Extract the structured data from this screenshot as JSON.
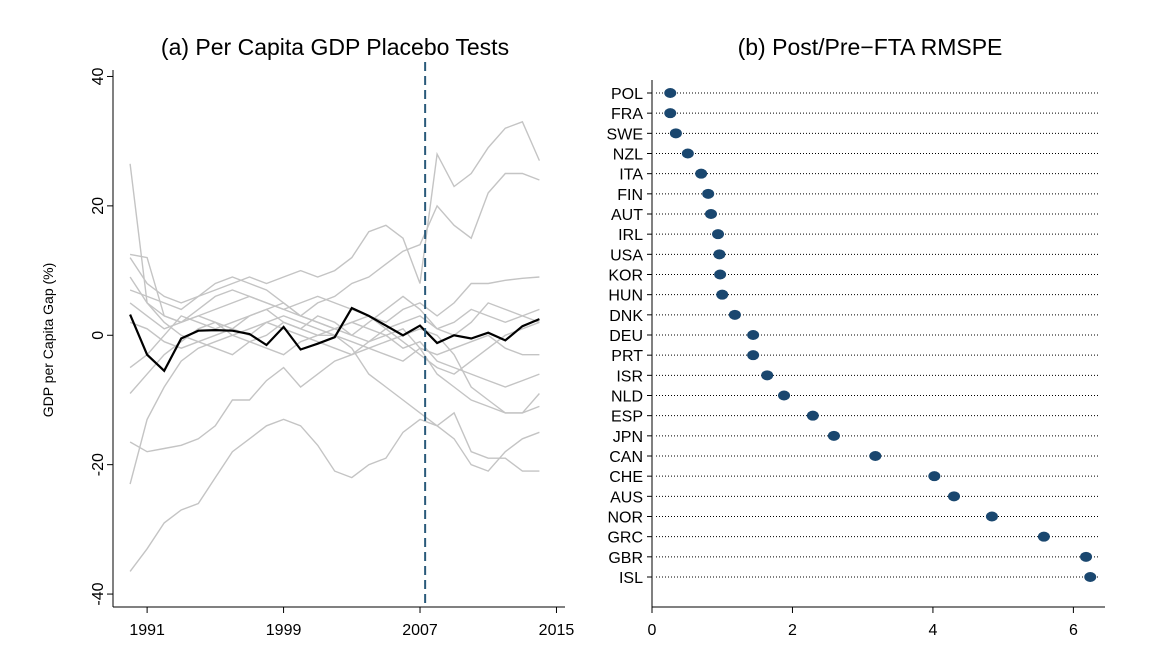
{
  "chart_data": [
    {
      "type": "line",
      "title": "(a) Per Capita GDP Placebo Tests",
      "ylabel": "GDP per Capita Gap (%)",
      "x": [
        1990,
        1991,
        1992,
        1993,
        1994,
        1995,
        1996,
        1997,
        1998,
        1999,
        2000,
        2001,
        2002,
        2003,
        2004,
        2005,
        2006,
        2007,
        2008,
        2009,
        2010,
        2011,
        2012,
        2013,
        2014
      ],
      "xlim": [
        1989,
        2015.5
      ],
      "xticks": [
        1991,
        1999,
        2007,
        2015
      ],
      "ylim": [
        -42,
        41
      ],
      "yticks": [
        -40,
        -20,
        0,
        20,
        40
      ],
      "vline": 2007.3,
      "vline_color": "#2a5a7a",
      "series": [
        {
          "color": "#c4c4c4",
          "values": [
            12,
            8,
            6,
            5,
            6,
            7,
            8,
            9,
            8,
            9,
            10,
            9,
            10,
            12,
            16,
            17,
            15,
            8,
            28,
            23,
            25,
            29,
            32,
            33,
            27
          ]
        },
        {
          "color": "#c4c4c4",
          "values": [
            26.5,
            5,
            3,
            2,
            4,
            6,
            7,
            6,
            5,
            4,
            3,
            5,
            6,
            8,
            9,
            11,
            13,
            14,
            20,
            17,
            15,
            22,
            25,
            25,
            24
          ]
        },
        {
          "color": "#c4c4c4",
          "values": [
            -36.5,
            -33,
            -29,
            -27,
            -26,
            -22,
            -18,
            -16,
            -14,
            -13,
            -14,
            -17,
            -21,
            -22,
            -20,
            -19,
            -15,
            -13,
            -14,
            -16,
            -20,
            -21,
            -18,
            -16,
            -15
          ]
        },
        {
          "color": "#c4c4c4",
          "values": [
            -23,
            -13,
            -8,
            -4,
            -2,
            -1,
            0,
            1,
            2,
            3,
            2,
            1,
            0,
            -2,
            -6,
            -8,
            -10,
            -12,
            -14,
            -12,
            -18,
            -19,
            -19,
            -21,
            -21
          ]
        },
        {
          "color": "#c4c4c4",
          "values": [
            -16.5,
            -18,
            -17.5,
            -17,
            -16,
            -14,
            -10,
            -10,
            -7,
            -5,
            -8,
            -6,
            -4,
            -3,
            -2,
            -1,
            0,
            1,
            0,
            -3,
            -8,
            -10,
            -12,
            -12,
            -9
          ]
        },
        {
          "color": "#c4c4c4",
          "values": [
            12.5,
            12,
            3,
            2,
            3,
            4,
            5,
            6,
            5,
            4,
            5,
            6,
            5,
            4,
            3,
            2,
            4,
            5,
            3,
            5,
            8,
            8,
            8.5,
            8.8,
            9
          ]
        },
        {
          "color": "#c4c4c4",
          "values": [
            9,
            5,
            2,
            0,
            -1,
            -2,
            -3,
            -1,
            0,
            2,
            1,
            0,
            0,
            -1,
            -2,
            -3,
            -4,
            -2,
            -6,
            -8,
            -10,
            -11,
            -12,
            -12,
            -11
          ]
        },
        {
          "color": "#c4c4c4",
          "values": [
            -9,
            -6,
            -3,
            -1,
            1,
            2,
            1,
            3,
            4,
            2,
            1,
            3,
            2,
            0,
            -1,
            1,
            2,
            3,
            1,
            2,
            4,
            3,
            2,
            3,
            4
          ]
        },
        {
          "color": "#c4c4c4",
          "values": [
            5,
            3,
            1,
            2,
            3,
            2,
            0,
            -1,
            -2,
            -3,
            -1,
            0,
            1,
            2,
            1,
            0,
            -2,
            -1,
            -4,
            -5,
            -6,
            -7,
            -8,
            -7,
            -6
          ]
        },
        {
          "color": "#c4c4c4",
          "values": [
            -5,
            -3,
            0,
            3,
            2,
            1,
            2,
            3,
            4,
            5,
            3,
            2,
            1,
            0,
            2,
            4,
            6,
            4,
            1,
            0,
            2,
            5,
            4,
            3,
            2
          ]
        },
        {
          "color": "#c4c4c4",
          "values": [
            2,
            1,
            -1,
            -2,
            -1,
            0,
            1,
            0,
            2,
            1,
            0,
            -1,
            -2,
            -3,
            -1,
            0,
            1,
            -2,
            -3,
            -2,
            -1,
            0,
            -2,
            -3,
            -3
          ]
        },
        {
          "color": "#c4c4c4",
          "values": [
            7,
            6,
            5,
            4,
            6,
            8,
            9,
            8,
            7,
            5,
            3,
            2,
            1,
            2,
            3,
            1,
            -1,
            -3,
            -5,
            -6,
            -4,
            -2,
            0,
            1,
            2
          ]
        },
        {
          "color": "#000000",
          "values": [
            3.2,
            -3,
            -5.5,
            -0.5,
            0.7,
            0.8,
            0.7,
            0.2,
            -1.5,
            1.3,
            -2.2,
            -1.3,
            -0.3,
            4.2,
            3,
            1.5,
            0,
            1.5,
            -1.2,
            0,
            -0.5,
            0.4,
            -0.8,
            1.4,
            2.5
          ]
        }
      ]
    },
    {
      "type": "dot",
      "title": "(b) Post/Pre−FTA RMSPE",
      "categories": [
        "POL",
        "FRA",
        "SWE",
        "NZL",
        "ITA",
        "FIN",
        "AUT",
        "IRL",
        "USA",
        "KOR",
        "HUN",
        "DNK",
        "DEU",
        "PRT",
        "ISR",
        "NLD",
        "ESP",
        "JPN",
        "CAN",
        "CHE",
        "AUS",
        "NOR",
        "GRC",
        "GBR",
        "ISL"
      ],
      "values": [
        0.26,
        0.26,
        0.34,
        0.51,
        0.7,
        0.8,
        0.84,
        0.94,
        0.96,
        0.97,
        1.0,
        1.18,
        1.44,
        1.44,
        1.64,
        1.88,
        2.29,
        2.59,
        3.18,
        4.02,
        4.3,
        4.84,
        5.58,
        6.18,
        6.24
      ],
      "color": "#1a476f",
      "xlim": [
        0,
        6.45
      ],
      "xticks": [
        0,
        2,
        4,
        6
      ]
    }
  ]
}
